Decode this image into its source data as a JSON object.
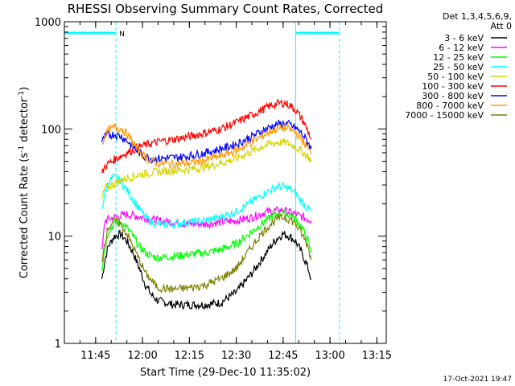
{
  "chart_data": {
    "type": "line",
    "title": "RHESSI Observing Summary Count Rates, Corrected",
    "xlabel": "Start Time (29-Dec-10 11:35:02)",
    "ylabel": "Corrected Count Rate (s",
    "ylabel_sup1": "-1",
    "ylabel_mid": " detector",
    "ylabel_sup2": "-1",
    "ylabel_end": ")",
    "y_scale": "log",
    "ylim": [
      1,
      1000
    ],
    "xlim_minutes_since_1135": [
      0,
      103
    ],
    "x_tick_labels": [
      "11:45",
      "12:00",
      "12:15",
      "12:30",
      "12:45",
      "13:00",
      "13:15"
    ],
    "x_tick_minutes": [
      10,
      25,
      40,
      55,
      70,
      85,
      100
    ],
    "y_tick_labels": [
      "1",
      "10",
      "100",
      "1000"
    ],
    "y_tick_values": [
      1,
      10,
      100,
      1000
    ],
    "legend_header": [
      "Det 1,3,4,5,6,9,",
      "Att 0"
    ],
    "legend_placement": "right",
    "timestamp": "17-Oct-2021 19:47",
    "night_marker": "N",
    "night_intervals": [
      [
        0,
        16.5
      ],
      [
        74,
        88
      ]
    ],
    "series": [
      {
        "name": "3 - 6 keV",
        "color": "#000000",
        "x": [
          12,
          13,
          14,
          16,
          18,
          20,
          22,
          24,
          26,
          28,
          30,
          35,
          40,
          45,
          50,
          55,
          60,
          63,
          66,
          68,
          70,
          72,
          74,
          76,
          78,
          79
        ],
        "y": [
          4,
          6,
          8,
          10,
          10.5,
          9,
          7,
          5,
          3.5,
          2.8,
          2.5,
          2.3,
          2.3,
          2.3,
          2.4,
          3,
          4.5,
          6,
          8,
          9.5,
          10.5,
          10,
          9,
          7,
          5,
          4
        ]
      },
      {
        "name": "6 - 12 keV",
        "color": "#ff00ff",
        "x": [
          12,
          13,
          16,
          20,
          25,
          30,
          35,
          40,
          45,
          50,
          55,
          60,
          65,
          70,
          74,
          79
        ],
        "y": [
          7,
          14,
          15,
          16,
          15,
          14,
          13.5,
          13,
          13,
          13.5,
          14,
          15,
          17,
          17.5,
          16,
          14
        ]
      },
      {
        "name": "12 - 25 keV",
        "color": "#00ff00",
        "x": [
          12,
          13,
          14,
          16,
          18,
          20,
          22,
          24,
          26,
          28,
          30,
          35,
          40,
          45,
          50,
          55,
          60,
          63,
          66,
          68,
          70,
          72,
          74,
          76,
          78,
          79
        ],
        "y": [
          5,
          8,
          11,
          13,
          13.5,
          12,
          10,
          8,
          7,
          6.5,
          6.3,
          6.5,
          6.8,
          7,
          7.5,
          8.5,
          11,
          13,
          15,
          16,
          16.5,
          16,
          14.5,
          12,
          9,
          7
        ]
      },
      {
        "name": "25 - 50 keV",
        "color": "#00ffff",
        "x": [
          12,
          13,
          14,
          16,
          18,
          20,
          22,
          24,
          26,
          28,
          30,
          35,
          40,
          45,
          50,
          55,
          60,
          63,
          66,
          68,
          70,
          72,
          74,
          76,
          78,
          79
        ],
        "y": [
          18,
          25,
          32,
          36,
          33,
          27,
          22,
          18,
          15,
          13.5,
          13,
          13,
          13.5,
          14,
          15,
          17,
          21,
          24,
          27,
          29,
          29,
          28,
          25,
          21,
          18,
          17
        ]
      },
      {
        "name": "50 - 100 keV",
        "color": "#d6d600",
        "x": [
          12,
          13,
          16,
          20,
          25,
          30,
          35,
          40,
          45,
          50,
          55,
          60,
          63,
          66,
          68,
          70,
          72,
          74,
          76,
          78,
          79
        ],
        "y": [
          22,
          28,
          31,
          35,
          38,
          40,
          41,
          42,
          44,
          48,
          53,
          62,
          68,
          73,
          75,
          75,
          73,
          68,
          62,
          55,
          50
        ]
      },
      {
        "name": "100 - 300 keV",
        "color": "#ff0000",
        "x": [
          12,
          13,
          16,
          20,
          25,
          30,
          35,
          40,
          45,
          50,
          55,
          60,
          63,
          66,
          68,
          70,
          72,
          74,
          76,
          78,
          79
        ],
        "y": [
          38,
          45,
          52,
          60,
          70,
          76,
          80,
          85,
          92,
          100,
          115,
          135,
          150,
          165,
          172,
          175,
          168,
          150,
          125,
          95,
          80
        ]
      },
      {
        "name": "300 - 800 keV",
        "color": "#0000ff",
        "x": [
          12,
          13,
          14,
          16,
          18,
          20,
          22,
          24,
          26,
          28,
          30,
          35,
          40,
          45,
          50,
          55,
          60,
          63,
          66,
          68,
          70,
          72,
          74,
          76,
          78,
          79
        ],
        "y": [
          75,
          85,
          88,
          89,
          86,
          78,
          68,
          60,
          55,
          53,
          53,
          54,
          56,
          60,
          65,
          72,
          85,
          95,
          105,
          110,
          112,
          110,
          102,
          90,
          75,
          65
        ]
      },
      {
        "name": "800 - 7000 keV",
        "color": "#ff9900",
        "x": [
          12,
          13,
          14,
          16,
          18,
          20,
          22,
          24,
          26,
          28,
          30,
          35,
          40,
          45,
          50,
          55,
          60,
          63,
          66,
          68,
          70,
          72,
          74,
          76,
          78,
          79
        ],
        "y": [
          70,
          88,
          96,
          104,
          102,
          90,
          75,
          62,
          54,
          50,
          48,
          47,
          48,
          51,
          56,
          63,
          75,
          85,
          95,
          100,
          102,
          100,
          92,
          80,
          65,
          58
        ]
      },
      {
        "name": "7000 - 15000 keV",
        "color": "#808000",
        "x": [
          12,
          13,
          14,
          16,
          18,
          20,
          22,
          24,
          26,
          28,
          30,
          35,
          40,
          45,
          50,
          55,
          60,
          63,
          66,
          68,
          70,
          72,
          74,
          76,
          78,
          79
        ],
        "y": [
          6,
          9,
          12,
          14,
          13,
          10.5,
          8,
          6,
          4.5,
          3.8,
          3.3,
          3.2,
          3.3,
          3.5,
          4,
          5,
          8,
          10.5,
          13,
          14.5,
          15,
          14.5,
          13,
          10.5,
          8,
          6
        ]
      }
    ]
  }
}
